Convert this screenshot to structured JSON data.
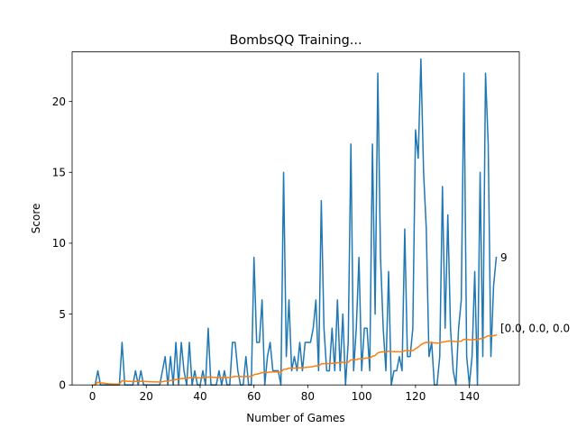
{
  "chart_data": {
    "type": "line",
    "title": "BombsQQ Training...",
    "xlabel": "Number of Games",
    "ylabel": "Score",
    "xlim": [
      -7.55,
      158.55
    ],
    "ylim": [
      0,
      23.5
    ],
    "xticks": [
      0,
      20,
      40,
      60,
      80,
      100,
      120,
      140
    ],
    "yticks": [
      0,
      5,
      10,
      15,
      20
    ],
    "grid": false,
    "legend": "none",
    "annotations": [
      {
        "text": "9",
        "x": 151,
        "y": 9
      },
      {
        "text": "[0.0, 0.0, 0.0",
        "x": 151,
        "y": 4.0
      }
    ],
    "series": [
      {
        "color": "#1f77b4",
        "values": [
          0,
          0,
          1,
          0,
          0,
          0,
          0,
          0,
          0,
          0,
          0,
          3,
          0,
          0,
          0,
          0,
          1,
          0,
          1,
          0,
          0,
          0,
          0,
          0,
          0,
          0,
          1,
          2,
          0,
          2,
          0,
          3,
          0,
          3,
          1,
          0,
          3,
          0,
          1,
          0,
          0,
          1,
          0,
          4,
          0,
          0,
          0,
          1,
          0,
          1,
          0,
          0,
          3,
          3,
          1,
          0,
          0,
          2,
          0,
          0,
          9,
          3,
          3,
          6,
          0,
          2,
          3,
          1,
          1,
          1,
          0,
          15,
          2,
          6,
          1,
          2,
          1,
          3,
          1,
          3,
          3,
          3,
          4,
          6,
          1,
          13,
          4,
          1,
          1,
          4,
          1,
          6,
          1,
          5,
          0,
          3,
          17,
          1,
          4,
          9,
          1,
          4,
          4,
          1,
          17,
          5,
          22,
          9,
          4,
          1,
          8,
          0,
          1,
          1,
          2,
          1,
          11,
          2,
          2,
          4,
          18,
          16,
          23,
          15,
          11,
          2,
          3,
          0,
          0,
          2,
          14,
          4,
          12,
          4,
          1,
          0,
          4,
          6,
          22,
          2,
          0,
          2,
          8,
          0,
          15,
          2,
          22,
          17,
          2,
          7,
          9
        ]
      },
      {
        "color": "#ff7f0e",
        "values": [
          0,
          0,
          0.2,
          0.15,
          0.13,
          0.1,
          0.08,
          0.07,
          0.06,
          0.06,
          0.06,
          0.3,
          0.28,
          0.26,
          0.25,
          0.23,
          0.25,
          0.23,
          0.26,
          0.25,
          0.24,
          0.23,
          0.22,
          0.21,
          0.21,
          0.2,
          0.23,
          0.27,
          0.26,
          0.32,
          0.31,
          0.39,
          0.38,
          0.45,
          0.46,
          0.44,
          0.51,
          0.5,
          0.51,
          0.5,
          0.49,
          0.5,
          0.49,
          0.56,
          0.55,
          0.54,
          0.52,
          0.53,
          0.52,
          0.53,
          0.52,
          0.51,
          0.56,
          0.6,
          0.6,
          0.59,
          0.58,
          0.6,
          0.59,
          0.58,
          0.72,
          0.76,
          0.8,
          0.87,
          0.86,
          0.88,
          0.91,
          0.91,
          0.91,
          0.91,
          0.9,
          1.1,
          1.11,
          1.18,
          1.18,
          1.19,
          1.19,
          1.21,
          1.21,
          1.23,
          1.25,
          1.27,
          1.3,
          1.35,
          1.34,
          1.48,
          1.5,
          1.5,
          1.5,
          1.53,
          1.52,
          1.57,
          1.56,
          1.6,
          1.58,
          1.6,
          1.77,
          1.76,
          1.78,
          1.85,
          1.84,
          1.87,
          1.9,
          1.88,
          2.03,
          2.07,
          2.26,
          2.32,
          2.34,
          2.32,
          2.38,
          2.36,
          2.35,
          2.34,
          2.34,
          2.33,
          2.42,
          2.41,
          2.41,
          2.42,
          2.56,
          2.67,
          2.84,
          2.94,
          3.01,
          2.99,
          2.99,
          2.97,
          2.95,
          2.95,
          3.03,
          3.04,
          3.1,
          3.1,
          3.08,
          3.06,
          3.07,
          3.09,
          3.22,
          3.21,
          3.19,
          3.18,
          3.21,
          3.19,
          3.27,
          3.26,
          3.38,
          3.47,
          3.46,
          3.48,
          3.52
        ]
      }
    ]
  }
}
